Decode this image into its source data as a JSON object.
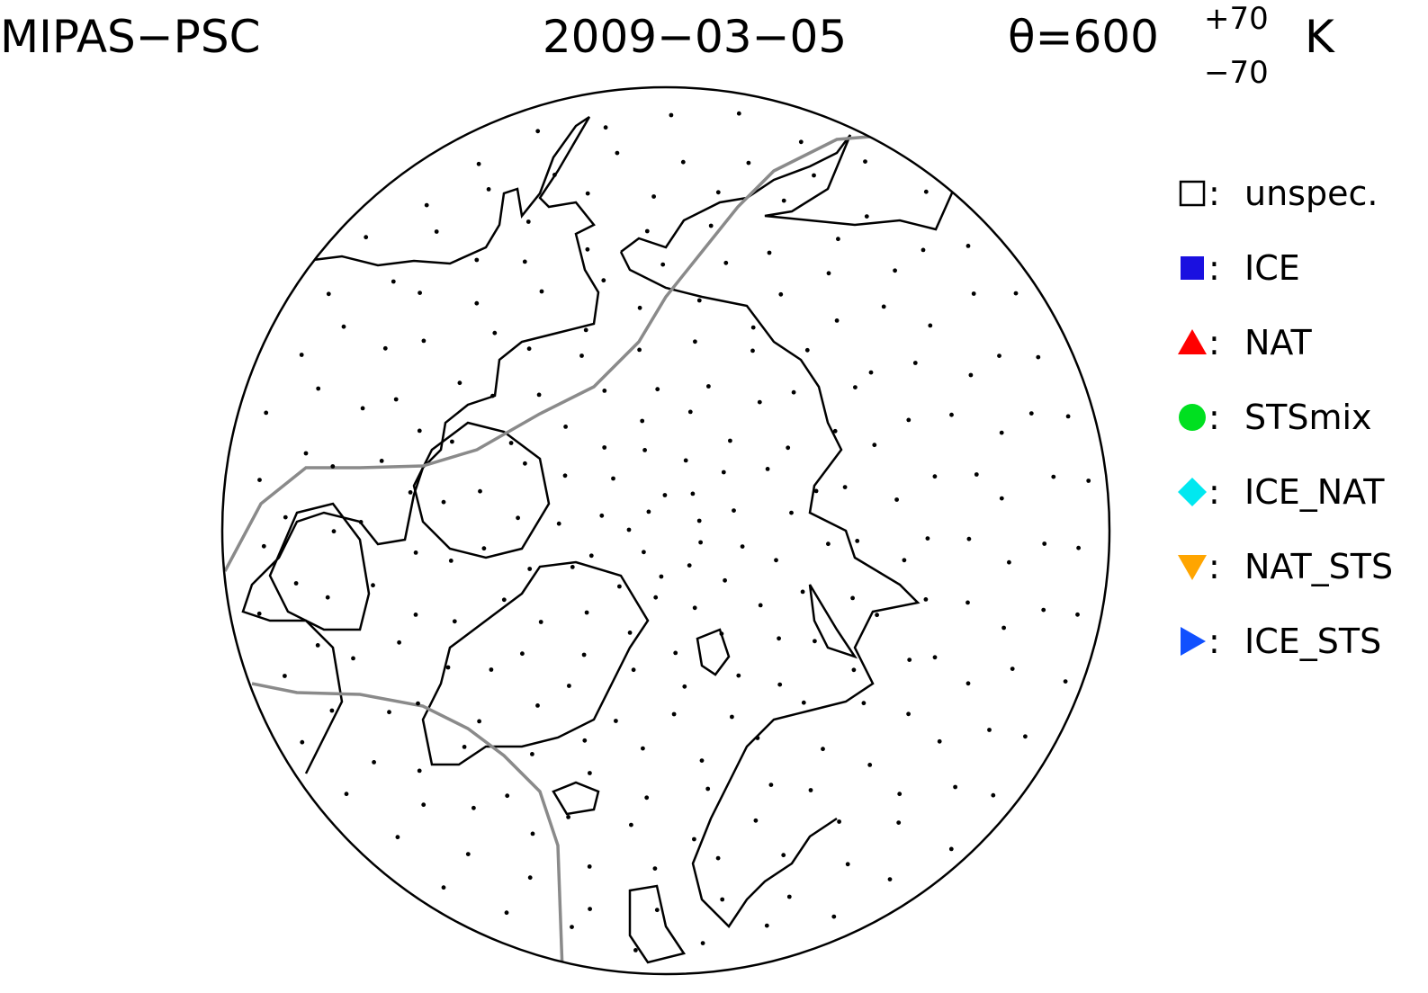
{
  "header": {
    "instrument": "MIPAS−PSC",
    "date": "2009−03−05",
    "theta": "θ=600",
    "upper": "+70",
    "lower": "−70",
    "unit": "K"
  },
  "legend": {
    "separator": ":",
    "items": [
      {
        "label": "unspec.",
        "marker": "square-open",
        "color": "#000000"
      },
      {
        "label": "ICE",
        "marker": "square",
        "color": "#1a10e0"
      },
      {
        "label": "NAT",
        "marker": "triangle-up",
        "color": "#ff0000"
      },
      {
        "label": "STSmix",
        "marker": "circle",
        "color": "#00e020"
      },
      {
        "label": "ICE_NAT",
        "marker": "diamond",
        "color": "#00e8f0"
      },
      {
        "label": "NAT_STS",
        "marker": "triangle-down",
        "color": "#ffa500"
      },
      {
        "label": "ICE_STS",
        "marker": "triangle-right",
        "color": "#1050ff"
      }
    ]
  }
}
